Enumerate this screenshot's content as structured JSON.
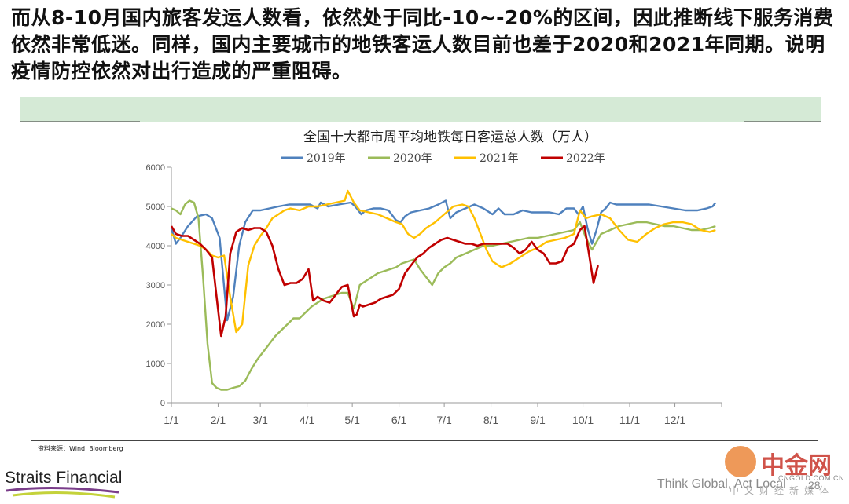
{
  "headline": "而从8-10月国内旅客发运人数看，依然处于同比-10~-20%的区间，因此推断线下服务消费依然非常低迷。同样，国内主要城市的地铁客运人数目前也差于2020和2021年同期。说明疫情防控依然对出行造成的严重阻碍。",
  "source_note": "资料来源：Wind, Bloomberg",
  "footer": {
    "logo_text": "Straits Financial",
    "tagline": "Think Global, Act Local",
    "page_number": "28",
    "watermark_cn": "中金网",
    "watermark_en": "CNGOLD.COM.CN",
    "watermark_sub": "中文财经新媒体"
  },
  "colors": {
    "s2019": "#4f81bd",
    "s2020": "#9bbb59",
    "s2021": "#ffc000",
    "s2022": "#c00000",
    "band": "#d5ead6"
  },
  "chart_data": {
    "type": "line",
    "title": "全国十大都市周平均地铁每日客运总人数（万人）",
    "xlabel": "",
    "ylabel": "",
    "ylim": [
      0,
      6000
    ],
    "yticks": [
      "0",
      "1000",
      "2000",
      "3000",
      "4000",
      "5000",
      "6000"
    ],
    "x_tick_labels": [
      "1/1",
      "2/1",
      "3/1",
      "4/1",
      "5/1",
      "6/1",
      "7/1",
      "8/1",
      "9/1",
      "10/1",
      "11/1",
      "12/1"
    ],
    "x_tick_days": [
      1,
      32,
      60,
      91,
      121,
      152,
      182,
      213,
      244,
      274,
      305,
      335
    ],
    "x_range_days": [
      1,
      366
    ],
    "grid": false,
    "legend_position": "top",
    "series": [
      {
        "name": "2019年",
        "x": [
          1,
          4,
          7,
          12,
          18,
          24,
          28,
          33,
          38,
          42,
          46,
          50,
          55,
          60,
          66,
          72,
          79,
          86,
          93,
          98,
          100,
          105,
          112,
          120,
          123,
          127,
          130,
          135,
          140,
          145,
          150,
          153,
          156,
          160,
          166,
          172,
          178,
          183,
          186,
          190,
          196,
          202,
          208,
          214,
          218,
          222,
          228,
          234,
          240,
          246,
          252,
          258,
          263,
          268,
          271,
          274,
          277,
          280,
          283,
          286,
          289,
          292,
          296,
          302,
          310,
          318,
          326,
          334,
          342,
          350,
          356,
          360,
          362
        ],
        "y": [
          4450,
          4050,
          4200,
          4500,
          4750,
          4800,
          4700,
          4200,
          2100,
          2700,
          4000,
          4600,
          4900,
          4900,
          4950,
          5000,
          5050,
          5050,
          5050,
          4950,
          5100,
          5000,
          5050,
          5100,
          5000,
          4800,
          4900,
          4950,
          4950,
          4900,
          4650,
          4600,
          4750,
          4850,
          4900,
          4950,
          5050,
          5150,
          4700,
          4850,
          4950,
          5050,
          4950,
          4800,
          4950,
          4800,
          4800,
          4900,
          4850,
          4850,
          4850,
          4800,
          4950,
          4950,
          4800,
          5000,
          4450,
          4050,
          4400,
          4850,
          4950,
          5100,
          5050,
          5050,
          5050,
          5050,
          5000,
          4950,
          4900,
          4900,
          4950,
          5000,
          5100
        ]
      },
      {
        "name": "2020年",
        "x": [
          1,
          4,
          7,
          10,
          13,
          16,
          19,
          22,
          25,
          28,
          31,
          34,
          38,
          42,
          46,
          50,
          54,
          58,
          62,
          66,
          70,
          74,
          78,
          82,
          86,
          90,
          94,
          98,
          102,
          106,
          110,
          114,
          118,
          122,
          126,
          130,
          134,
          138,
          142,
          146,
          150,
          154,
          158,
          162,
          166,
          170,
          174,
          178,
          182,
          186,
          190,
          196,
          202,
          208,
          214,
          220,
          226,
          232,
          238,
          244,
          250,
          256,
          262,
          268,
          272,
          276,
          280,
          286,
          292,
          298,
          304,
          310,
          316,
          322,
          328,
          334,
          340,
          346,
          352,
          358,
          362
        ],
        "y": [
          4950,
          4900,
          4800,
          5050,
          5150,
          5100,
          4700,
          3200,
          1500,
          500,
          380,
          330,
          330,
          380,
          420,
          560,
          850,
          1100,
          1300,
          1500,
          1700,
          1850,
          2000,
          2150,
          2150,
          2300,
          2450,
          2550,
          2650,
          2700,
          2750,
          2800,
          2800,
          2400,
          3000,
          3100,
          3200,
          3300,
          3350,
          3400,
          3450,
          3550,
          3600,
          3650,
          3400,
          3200,
          3000,
          3300,
          3450,
          3550,
          3700,
          3800,
          3900,
          4000,
          4000,
          4050,
          4100,
          4150,
          4200,
          4200,
          4250,
          4300,
          4350,
          4400,
          4600,
          4200,
          3900,
          4300,
          4400,
          4500,
          4550,
          4600,
          4600,
          4550,
          4500,
          4500,
          4450,
          4400,
          4400,
          4450,
          4500
        ]
      },
      {
        "name": "2021年",
        "x": [
          1,
          4,
          8,
          12,
          16,
          20,
          24,
          28,
          32,
          36,
          40,
          44,
          48,
          52,
          56,
          60,
          64,
          68,
          72,
          76,
          80,
          86,
          92,
          98,
          104,
          110,
          116,
          118,
          122,
          126,
          132,
          138,
          144,
          150,
          154,
          158,
          162,
          166,
          170,
          176,
          182,
          188,
          194,
          198,
          202,
          206,
          210,
          214,
          220,
          226,
          232,
          238,
          244,
          250,
          256,
          262,
          268,
          272,
          276,
          280,
          286,
          292,
          298,
          304,
          310,
          316,
          322,
          328,
          334,
          340,
          346,
          352,
          358,
          362
        ],
        "y": [
          4300,
          4200,
          4150,
          4100,
          4050,
          4000,
          3900,
          3750,
          3700,
          3750,
          2700,
          1800,
          2000,
          3500,
          4000,
          4250,
          4450,
          4700,
          4800,
          4900,
          4950,
          4900,
          5000,
          5000,
          5050,
          5100,
          5150,
          5400,
          5100,
          4900,
          4850,
          4800,
          4700,
          4600,
          4550,
          4300,
          4200,
          4300,
          4450,
          4600,
          4800,
          5000,
          5050,
          5000,
          4700,
          4300,
          3900,
          3600,
          3450,
          3550,
          3700,
          3850,
          3950,
          4100,
          4150,
          4200,
          4300,
          4900,
          4700,
          4750,
          4800,
          4700,
          4400,
          4150,
          4100,
          4300,
          4450,
          4550,
          4600,
          4600,
          4550,
          4400,
          4350,
          4400
        ]
      },
      {
        "name": "2022年",
        "x": [
          1,
          4,
          8,
          12,
          16,
          20,
          24,
          28,
          31,
          34,
          37,
          40,
          44,
          48,
          52,
          56,
          60,
          64,
          68,
          72,
          76,
          80,
          84,
          88,
          92,
          95,
          98,
          102,
          106,
          110,
          114,
          118,
          122,
          124,
          126,
          128,
          132,
          136,
          140,
          144,
          148,
          152,
          156,
          160,
          164,
          168,
          172,
          176,
          180,
          184,
          188,
          192,
          196,
          200,
          204,
          208,
          212,
          216,
          220,
          224,
          228,
          232,
          236,
          240,
          244,
          248,
          252,
          256,
          260,
          264,
          268,
          272,
          275,
          278,
          281,
          284
        ],
        "y": [
          4500,
          4300,
          4250,
          4250,
          4150,
          4050,
          3900,
          3700,
          2700,
          1700,
          2200,
          3800,
          4350,
          4450,
          4400,
          4450,
          4450,
          4350,
          4000,
          3400,
          3000,
          3050,
          3050,
          3150,
          3400,
          2600,
          2700,
          2600,
          2550,
          2750,
          2950,
          3000,
          2200,
          2250,
          2500,
          2450,
          2500,
          2550,
          2650,
          2700,
          2750,
          2900,
          3300,
          3500,
          3700,
          3800,
          3950,
          4050,
          4150,
          4200,
          4150,
          4100,
          4050,
          4050,
          4000,
          4050,
          4050,
          4050,
          4050,
          4050,
          3950,
          3800,
          3900,
          4100,
          3900,
          3800,
          3550,
          3550,
          3600,
          3950,
          4050,
          4400,
          4500,
          3800,
          3050,
          3500
        ]
      }
    ]
  }
}
